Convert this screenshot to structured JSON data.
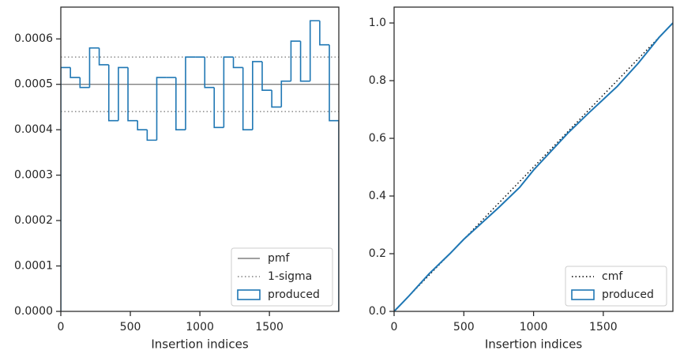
{
  "chart_data": [
    {
      "type": "histogram",
      "xlabel": "Insertion indices",
      "bins": [
        0,
        69,
        138,
        207,
        276,
        345,
        414,
        483,
        552,
        621,
        690,
        759,
        828,
        897,
        966,
        1035,
        1103,
        1172,
        1241,
        1310,
        1379,
        1448,
        1517,
        1586,
        1655,
        1724,
        1793,
        1862,
        1931,
        1999
      ],
      "series": [
        {
          "name": "produced",
          "color": "#1f77b4",
          "values": [
            0.000537,
            0.000515,
            0.000493,
            0.00058,
            0.000543,
            0.00042,
            0.000537,
            0.00042,
            0.0004,
            0.000377,
            0.000515,
            0.000515,
            0.0004,
            0.00056,
            0.00056,
            0.000493,
            0.000405,
            0.00056,
            0.000537,
            0.0004,
            0.00055,
            0.000487,
            0.00045,
            0.000507,
            0.000595,
            0.000507,
            0.00064,
            0.000587,
            0.00042
          ]
        }
      ],
      "reference_lines": [
        {
          "name": "pmf",
          "color": "#808080",
          "style": "solid",
          "values": [
            0.0005
          ]
        },
        {
          "name": "1-sigma",
          "color": "#808080",
          "style": "dotted",
          "values": [
            0.00044,
            0.00056
          ]
        }
      ],
      "xlim": [
        0,
        1999
      ],
      "ylim": [
        0,
        0.00067
      ],
      "xticks": [
        0,
        500,
        1000,
        1500
      ],
      "yticks": [
        {
          "value": 0,
          "label": "0.0000"
        },
        0.0001,
        0.0002,
        0.0003,
        0.0004,
        0.0005,
        0.0006
      ],
      "legend": "lower right"
    },
    {
      "type": "line",
      "xlabel": "Insertion indices",
      "series": [
        {
          "name": "cmf",
          "color": "#000000",
          "style": "dotted",
          "x": [
            0,
            1999
          ],
          "values": [
            0,
            1
          ]
        },
        {
          "name": "produced",
          "color": "#1f77b4",
          "style": "step",
          "legend_marker": "patch",
          "x": [
            0,
            100,
            250,
            400,
            500,
            750,
            900,
            1000,
            1250,
            1400,
            1600,
            1750,
            1900,
            1999
          ],
          "values": [
            0,
            0.05,
            0.13,
            0.2,
            0.25,
            0.36,
            0.43,
            0.49,
            0.62,
            0.69,
            0.78,
            0.86,
            0.95,
            1.0
          ]
        }
      ],
      "xlim": [
        0,
        1999
      ],
      "ylim": [
        0,
        1.055
      ],
      "xticks": [
        0,
        500,
        1000,
        1500
      ],
      "yticks": [
        {
          "value": 0,
          "label": "0.0"
        },
        0.2,
        0.4,
        0.6,
        0.8,
        {
          "value": 1,
          "label": "1.0"
        }
      ],
      "legend": "lower right"
    }
  ]
}
